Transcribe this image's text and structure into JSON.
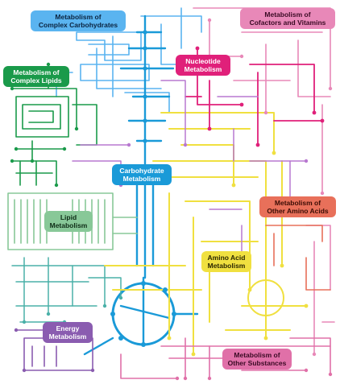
{
  "colors": {
    "complex_carbohydrates": "#5ab4f0",
    "cofactors_vitamins": "#e888b8",
    "nucleotide": "#e0207a",
    "complex_lipids": "#1a9a4a",
    "carbohydrate": "#1a9ad8",
    "lipid": "#88c898",
    "other_amino_acids": "#e8705a",
    "amino_acid": "#f0e040",
    "energy": "#8a5cb0",
    "other_substances": "#e070a8",
    "teal": "#4ab0a8",
    "purple_lines": "#b878d0",
    "pink_lines": "#d86ab0"
  },
  "labels": {
    "complex_carbohydrates": [
      "Metabolism of",
      "Complex Carbohydrates"
    ],
    "cofactors_vitamins": [
      "Metabolism of",
      "Cofactors and Vitamins"
    ],
    "nucleotide": [
      "Nucleotide",
      "Metabolism"
    ],
    "complex_lipids": [
      "Metabolism of",
      "Complex Lipids"
    ],
    "carbohydrate": [
      "Carbohydrate",
      "Metabolism"
    ],
    "lipid": [
      "Lipid",
      "Metabolism"
    ],
    "other_amino_acids": [
      "Metabolism of",
      "Other Amino Acids"
    ],
    "amino_acid": [
      "Amino Acid",
      "Metabolism"
    ],
    "energy": [
      "Energy",
      "Metabolism"
    ],
    "other_substances": [
      "Metabolism of",
      "Other Substances"
    ]
  }
}
